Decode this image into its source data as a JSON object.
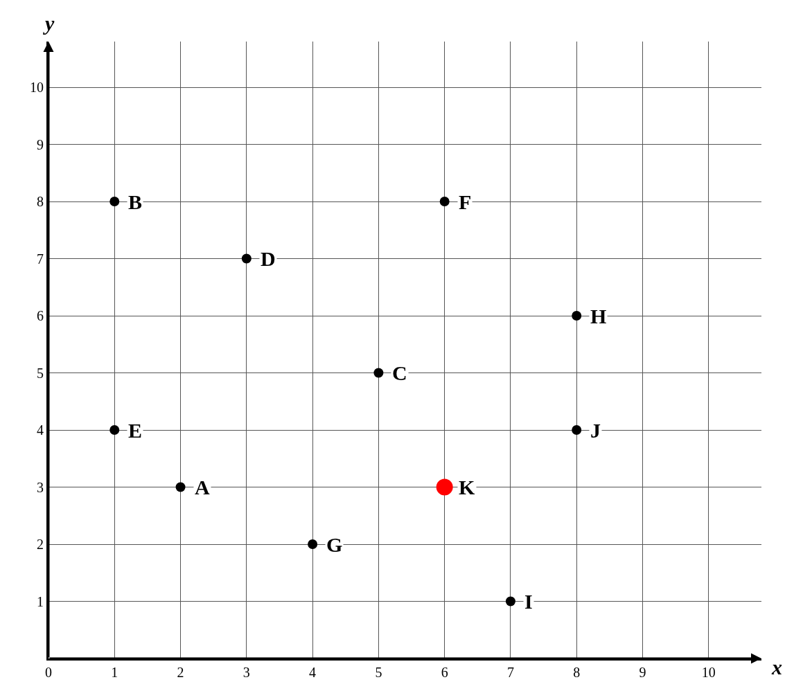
{
  "chart_data": {
    "type": "scatter",
    "xlabel": "x",
    "ylabel": "y",
    "xlim": [
      0,
      10.8
    ],
    "ylim": [
      0,
      10.8
    ],
    "xticks": [
      0,
      1,
      2,
      3,
      4,
      5,
      6,
      7,
      8,
      9,
      10
    ],
    "yticks": [
      1,
      2,
      3,
      4,
      5,
      6,
      7,
      8,
      9,
      10
    ],
    "grid": true,
    "marker": "circle",
    "series": [
      {
        "color": "#000000",
        "x": [
          2,
          1,
          5,
          3,
          1,
          6,
          4,
          8,
          7,
          8
        ],
        "values": [
          3,
          8,
          5,
          7,
          4,
          8,
          2,
          6,
          1,
          4
        ]
      },
      {
        "color": "#ff0000",
        "x": [
          6
        ],
        "values": [
          3
        ]
      }
    ],
    "annotations": [
      {
        "text": "A",
        "x": 2,
        "y": 3
      },
      {
        "text": "B",
        "x": 1,
        "y": 8
      },
      {
        "text": "C",
        "x": 5,
        "y": 5
      },
      {
        "text": "D",
        "x": 3,
        "y": 7
      },
      {
        "text": "E",
        "x": 1,
        "y": 4
      },
      {
        "text": "F",
        "x": 6,
        "y": 8
      },
      {
        "text": "G",
        "x": 4,
        "y": 2
      },
      {
        "text": "H",
        "x": 8,
        "y": 6
      },
      {
        "text": "I",
        "x": 7,
        "y": 1
      },
      {
        "text": "J",
        "x": 8,
        "y": 4
      },
      {
        "text": "K",
        "x": 6,
        "y": 3
      }
    ]
  }
}
